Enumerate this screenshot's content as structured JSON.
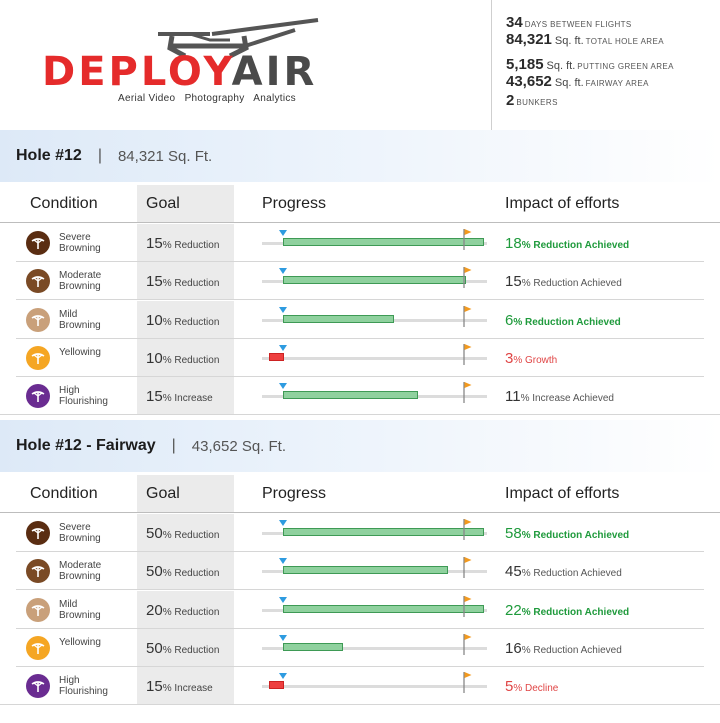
{
  "header": {
    "brand": "DEPLOYAIR",
    "brand_left": "DEPL",
    "brand_o": "O",
    "brand_y": "Y",
    "brand_right": "AIR",
    "tagline": "Aerial Video   Photography   Analytics",
    "stats": [
      {
        "num": "34",
        "unit": "",
        "label": "DAYS BETWEEN FLIGHTS"
      },
      {
        "num": "84,321",
        "unit": "Sq. ft.",
        "label": "TOTAL HOLE AREA"
      },
      {
        "num": "5,185",
        "unit": "Sq. ft.",
        "label": "PUTTING GREEN AREA"
      },
      {
        "num": "43,652",
        "unit": "Sq. ft.",
        "label": "FAIRWAY AREA"
      },
      {
        "num": "2",
        "unit": "",
        "label": "BUNKERS"
      }
    ]
  },
  "columns": {
    "condition": "Condition",
    "goal": "Goal",
    "progress": "Progress",
    "impact": "Impact of efforts"
  },
  "colors": {
    "accent_green": "#1f9a3c",
    "accent_red": "#e04545",
    "bar_green": "#8fd19e",
    "marker_blue": "#2e9be0",
    "flag_orange": "#f39a1e"
  },
  "sections": [
    {
      "title": "Hole #12",
      "separator": "|",
      "area": "84,321 Sq. Ft.",
      "rows": [
        {
          "icon": "severe-browning-icon",
          "icon_color": "#5a2d12",
          "cond_line1": "Severe",
          "cond_line2": "Browning",
          "goal_num": "15",
          "goal_text": "% Reduction",
          "progress_fraction": 1.2,
          "impact_num": "18",
          "impact_text": "% Reduction Achieved",
          "impact_type": "good"
        },
        {
          "icon": "moderate-browning-icon",
          "icon_color": "#7a4a25",
          "cond_line1": "Moderate",
          "cond_line2": "Browning",
          "goal_num": "15",
          "goal_text": "% Reduction",
          "progress_fraction": 1.0,
          "impact_num": "15",
          "impact_text": "% Reduction Achieved",
          "impact_type": "neutral"
        },
        {
          "icon": "mild-browning-icon",
          "icon_color": "#c9a07a",
          "cond_line1": "Mild",
          "cond_line2": "Browning",
          "goal_num": "10",
          "goal_text": "% Reduction",
          "progress_fraction": 0.6,
          "impact_num": "6",
          "impact_text": "% Reduction Achieved",
          "impact_type": "good"
        },
        {
          "icon": "yellowing-icon",
          "icon_color": "#f5a623",
          "cond_line1": "Yellowing",
          "cond_line2": "",
          "goal_num": "10",
          "goal_text": "% Reduction",
          "progress_fraction": -0.3,
          "impact_num": "3",
          "impact_text": "% Growth",
          "impact_type": "bad"
        },
        {
          "icon": "high-flourishing-icon",
          "icon_color": "#6a2c91",
          "cond_line1": "High",
          "cond_line2": "Flourishing",
          "goal_num": "15",
          "goal_text": "% Increase",
          "progress_fraction": 0.7333,
          "impact_num": "11",
          "impact_text": "% Increase Achieved",
          "impact_type": "neutral"
        }
      ]
    },
    {
      "title": "Hole #12 - Fairway",
      "separator": "|",
      "area": "43,652 Sq. Ft.",
      "rows": [
        {
          "icon": "severe-browning-icon",
          "icon_color": "#5a2d12",
          "cond_line1": "Severe",
          "cond_line2": "Browning",
          "goal_num": "50",
          "goal_text": "% Reduction",
          "progress_fraction": 1.16,
          "impact_num": "58",
          "impact_text": "% Reduction Achieved",
          "impact_type": "good"
        },
        {
          "icon": "moderate-browning-icon",
          "icon_color": "#7a4a25",
          "cond_line1": "Moderate",
          "cond_line2": "Browning",
          "goal_num": "50",
          "goal_text": "% Reduction",
          "progress_fraction": 0.9,
          "impact_num": "45",
          "impact_text": "% Reduction Achieved",
          "impact_type": "neutral"
        },
        {
          "icon": "mild-browning-icon",
          "icon_color": "#c9a07a",
          "cond_line1": "Mild",
          "cond_line2": "Browning",
          "goal_num": "20",
          "goal_text": "% Reduction",
          "progress_fraction": 1.1,
          "impact_num": "22",
          "impact_text": "% Reduction Achieved",
          "impact_type": "good"
        },
        {
          "icon": "yellowing-icon",
          "icon_color": "#f5a623",
          "cond_line1": "Yellowing",
          "cond_line2": "",
          "goal_num": "50",
          "goal_text": "% Reduction",
          "progress_fraction": 0.32,
          "impact_num": "16",
          "impact_text": "% Reduction Achieved",
          "impact_type": "neutral"
        },
        {
          "icon": "high-flourishing-icon",
          "icon_color": "#6a2c91",
          "cond_line1": "High",
          "cond_line2": "Flourishing",
          "goal_num": "15",
          "goal_text": "% Increase",
          "progress_fraction": -0.3333,
          "impact_num": "5",
          "impact_text": "% Decline",
          "impact_type": "bad"
        }
      ]
    }
  ]
}
